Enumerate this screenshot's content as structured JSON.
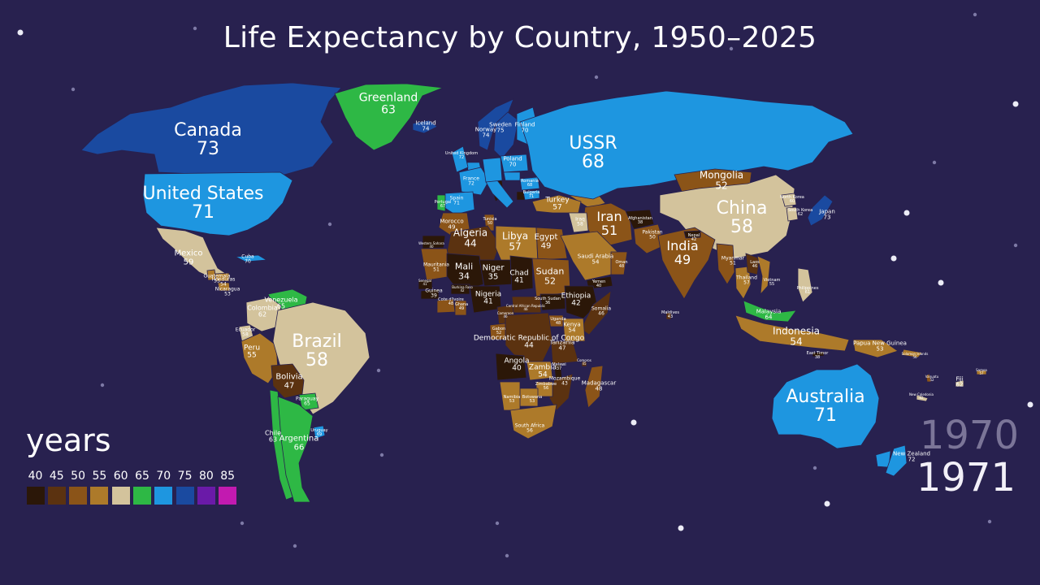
{
  "title": "Life Expectancy by Country, 1950–2025",
  "legend": {
    "title": "years",
    "items": [
      {
        "label": "40",
        "color": "#2b1708"
      },
      {
        "label": "45",
        "color": "#5b3210"
      },
      {
        "label": "50",
        "color": "#8b5418"
      },
      {
        "label": "55",
        "color": "#ad7a2a"
      },
      {
        "label": "60",
        "color": "#d3c39c"
      },
      {
        "label": "65",
        "color": "#2eb845"
      },
      {
        "label": "70",
        "color": "#1e96e0"
      },
      {
        "label": "75",
        "color": "#1a4aa0"
      },
      {
        "label": "80",
        "color": "#6a1aa8"
      },
      {
        "label": "85",
        "color": "#c21ab0"
      }
    ]
  },
  "year_previous": "1970",
  "year_current": "1971",
  "countries": [
    {
      "name": "Canada",
      "value": "73"
    },
    {
      "name": "United States",
      "value": "71"
    },
    {
      "name": "Greenland",
      "value": "63"
    },
    {
      "name": "Iceland",
      "value": "74"
    },
    {
      "name": "Mexico",
      "value": "59"
    },
    {
      "name": "Cuba",
      "value": "70"
    },
    {
      "name": "Guatemala",
      "value": "53"
    },
    {
      "name": "Honduras",
      "value": "54"
    },
    {
      "name": "Nicaragua",
      "value": "53"
    },
    {
      "name": "Venezuela",
      "value": "65"
    },
    {
      "name": "Colombia",
      "value": "62"
    },
    {
      "name": "Ecuador",
      "value": "58"
    },
    {
      "name": "Peru",
      "value": "55"
    },
    {
      "name": "Brazil",
      "value": "58"
    },
    {
      "name": "Bolivia",
      "value": "47"
    },
    {
      "name": "Paraguay",
      "value": "65"
    },
    {
      "name": "Chile",
      "value": "63"
    },
    {
      "name": "Argentina",
      "value": "66"
    },
    {
      "name": "Uruguay",
      "value": "69"
    },
    {
      "name": "Norway",
      "value": "74"
    },
    {
      "name": "Sweden",
      "value": "75"
    },
    {
      "name": "Finland",
      "value": "70"
    },
    {
      "name": "United Kingdom",
      "value": "72"
    },
    {
      "name": "France",
      "value": "72"
    },
    {
      "name": "Spain",
      "value": "71"
    },
    {
      "name": "Portugal",
      "value": "67"
    },
    {
      "name": "Poland",
      "value": "70"
    },
    {
      "name": "Romania",
      "value": "68"
    },
    {
      "name": "Bulgaria",
      "value": "71"
    },
    {
      "name": "Turkey",
      "value": "57"
    },
    {
      "name": "USSR",
      "value": "68"
    },
    {
      "name": "Mongolia",
      "value": "52"
    },
    {
      "name": "China",
      "value": "58"
    },
    {
      "name": "North Korea",
      "value": "60"
    },
    {
      "name": "South Korea",
      "value": "62"
    },
    {
      "name": "Japan",
      "value": "73"
    },
    {
      "name": "Iran",
      "value": "51"
    },
    {
      "name": "Iraq",
      "value": "58"
    },
    {
      "name": "Afghanistan",
      "value": "38"
    },
    {
      "name": "Pakistan",
      "value": "50"
    },
    {
      "name": "India",
      "value": "49"
    },
    {
      "name": "Nepal",
      "value": "42"
    },
    {
      "name": "Myanmar",
      "value": "51"
    },
    {
      "name": "Thailand",
      "value": "57"
    },
    {
      "name": "Laos",
      "value": "46"
    },
    {
      "name": "Vietnam",
      "value": "55"
    },
    {
      "name": "Philippines",
      "value": "61"
    },
    {
      "name": "Malaysia",
      "value": "64"
    },
    {
      "name": "Indonesia",
      "value": "54"
    },
    {
      "name": "East Timor",
      "value": "38"
    },
    {
      "name": "Papua New Guinea",
      "value": "53"
    },
    {
      "name": "Solomon Islands",
      "value": "56"
    },
    {
      "name": "Australia",
      "value": "71"
    },
    {
      "name": "New Zealand",
      "value": "72"
    },
    {
      "name": "New Caledonia",
      "value": "62"
    },
    {
      "name": "Vanuatu",
      "value": "52"
    },
    {
      "name": "Fiji",
      "value": "62"
    },
    {
      "name": "Samoa",
      "value": "57"
    },
    {
      "name": "Maldives",
      "value": "43"
    },
    {
      "name": "Morocco",
      "value": "49"
    },
    {
      "name": "Tunisia",
      "value": "50"
    },
    {
      "name": "Algeria",
      "value": "44"
    },
    {
      "name": "Libya",
      "value": "57"
    },
    {
      "name": "Egypt",
      "value": "49"
    },
    {
      "name": "Western Sahara",
      "value": "40"
    },
    {
      "name": "Mauritania",
      "value": "51"
    },
    {
      "name": "Mali",
      "value": "34"
    },
    {
      "name": "Niger",
      "value": "35"
    },
    {
      "name": "Chad",
      "value": "41"
    },
    {
      "name": "Sudan",
      "value": "52"
    },
    {
      "name": "Saudi Arabia",
      "value": "54"
    },
    {
      "name": "Yemen",
      "value": "40"
    },
    {
      "name": "Oman",
      "value": "48"
    },
    {
      "name": "Senegal",
      "value": "41"
    },
    {
      "name": "Guinea",
      "value": "39"
    },
    {
      "name": "Burkina Faso",
      "value": "42"
    },
    {
      "name": "Cote d'Ivoire",
      "value": "48"
    },
    {
      "name": "Ghana",
      "value": "49"
    },
    {
      "name": "Nigeria",
      "value": "41"
    },
    {
      "name": "Cameroon",
      "value": "46"
    },
    {
      "name": "Central African Republic",
      "value": "46"
    },
    {
      "name": "South Sudan",
      "value": "36"
    },
    {
      "name": "Ethiopia",
      "value": "42"
    },
    {
      "name": "Somalia",
      "value": "46"
    },
    {
      "name": "Kenya",
      "value": "54"
    },
    {
      "name": "Uganda",
      "value": "48"
    },
    {
      "name": "Gabon",
      "value": "52"
    },
    {
      "name": "Democratic Republic of Congo",
      "value": "44"
    },
    {
      "name": "Tanzania",
      "value": "47"
    },
    {
      "name": "Angola",
      "value": "40"
    },
    {
      "name": "Zambia",
      "value": "54"
    },
    {
      "name": "Malawi",
      "value": "37"
    },
    {
      "name": "Mozambique",
      "value": "43"
    },
    {
      "name": "Zimbabwe",
      "value": "56"
    },
    {
      "name": "Botswana",
      "value": "53"
    },
    {
      "name": "Namibia",
      "value": "53"
    },
    {
      "name": "South Africa",
      "value": "56"
    },
    {
      "name": "Madagascar",
      "value": "48"
    },
    {
      "name": "Comoros",
      "value": "45"
    }
  ]
}
